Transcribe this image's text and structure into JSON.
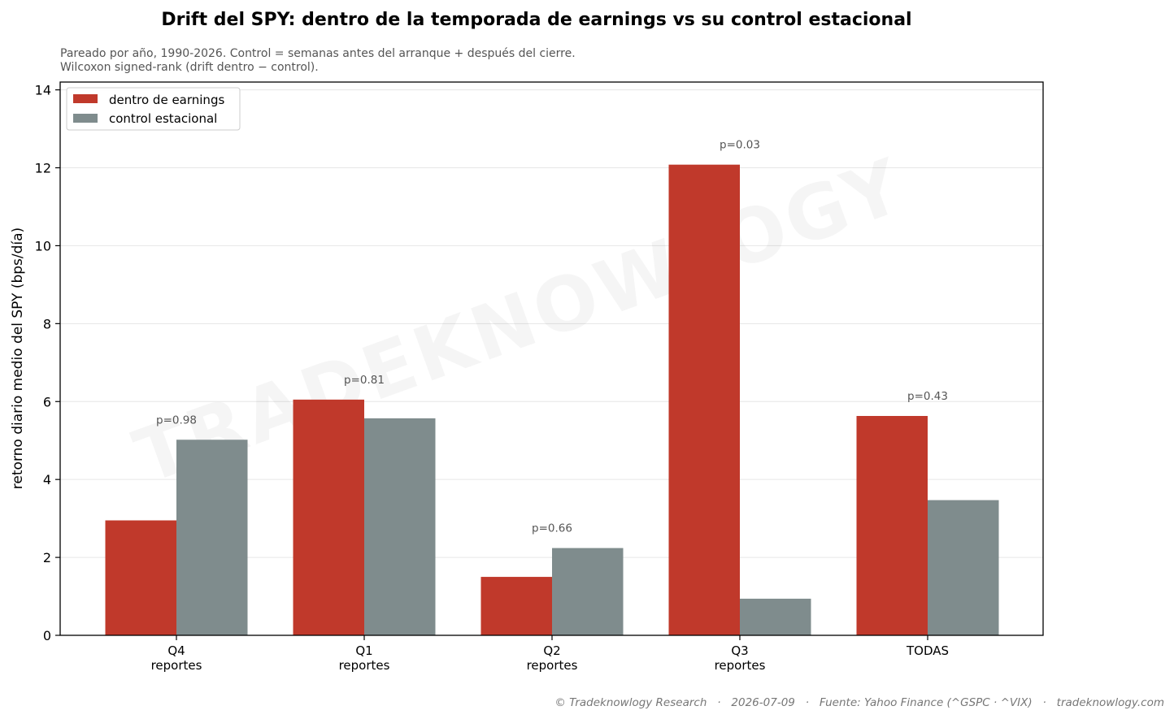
{
  "header": {
    "title": "Drift del SPY: dentro de la temporada de earnings vs su control estacional",
    "subtitle_line1": "Pareado por año, 1990-2026. Control = semanas antes del arranque + después del cierre.",
    "subtitle_line2": "Wilcoxon signed-rank (drift dentro − control)."
  },
  "watermark": "TRADEKNOWLOGY",
  "footer": {
    "text": "© Tradeknowlogy Research   ·   2026-07-09   ·   Fuente: Yahoo Finance (^GSPC · ^VIX)   ·   tradeknowlogy.com"
  },
  "colors": {
    "inside": "#c0392b",
    "control": "#7f8c8d",
    "grid": "#e6e6e6"
  },
  "chart_data": {
    "type": "bar",
    "ylabel": "retorno diario medio del SPY (bps/día)",
    "xlabel": "",
    "ylim": [
      0,
      14.2
    ],
    "yticks": [
      0,
      2,
      4,
      6,
      8,
      10,
      12,
      14
    ],
    "grid": "y-horizontal",
    "legend_position": "top-left",
    "categories": [
      {
        "line1": "Q4",
        "line2": "reportes"
      },
      {
        "line1": "Q1",
        "line2": "reportes"
      },
      {
        "line1": "Q2",
        "line2": "reportes"
      },
      {
        "line1": "Q3",
        "line2": "reportes"
      },
      {
        "line1": "TODAS",
        "line2": ""
      }
    ],
    "series": [
      {
        "name": "dentro de earnings",
        "color": "#c0392b",
        "values": [
          2.95,
          6.05,
          1.5,
          12.08,
          5.63
        ]
      },
      {
        "name": "control estacional",
        "color": "#7f8c8d",
        "values": [
          5.02,
          5.57,
          2.24,
          0.94,
          3.47
        ]
      }
    ],
    "annotations": [
      "p=0.98",
      "p=0.81",
      "p=0.66",
      "p=0.03",
      "p=0.43"
    ]
  }
}
